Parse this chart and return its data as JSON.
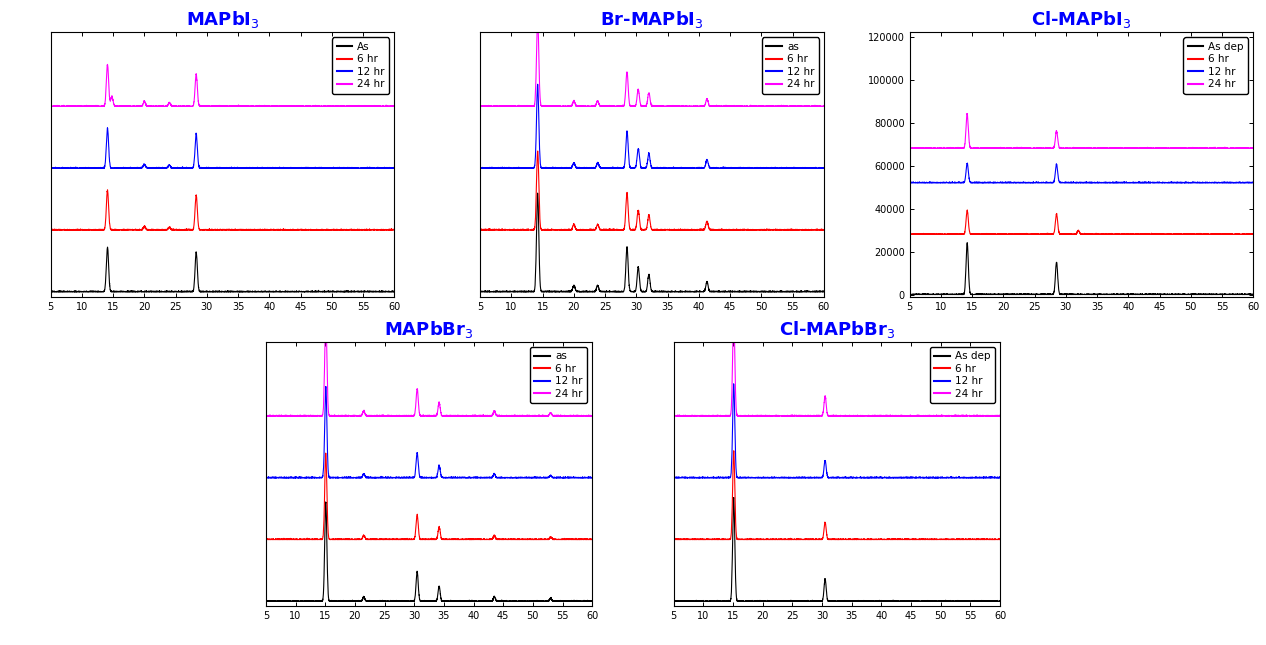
{
  "panels": [
    {
      "title": "MAPbI$_3$",
      "legend_labels": [
        "As",
        "6 hr",
        "12 hr",
        "24 hr"
      ],
      "has_yaxis": false,
      "offsets": [
        0.0,
        0.25,
        0.5,
        0.75
      ],
      "ylim": [
        -0.02,
        1.05
      ],
      "peaks": [
        [
          [
            14.1,
            0.18
          ],
          [
            28.3,
            0.16
          ]
        ],
        [
          [
            14.1,
            0.16
          ],
          [
            28.3,
            0.14
          ],
          [
            20.0,
            0.015
          ],
          [
            24.0,
            0.012
          ]
        ],
        [
          [
            14.1,
            0.16
          ],
          [
            28.3,
            0.14
          ],
          [
            20.0,
            0.015
          ],
          [
            24.0,
            0.012
          ]
        ],
        [
          [
            14.1,
            0.17
          ],
          [
            28.3,
            0.13
          ],
          [
            14.8,
            0.04
          ],
          [
            20.0,
            0.02
          ],
          [
            24.0,
            0.015
          ]
        ]
      ],
      "sigma": 0.18
    },
    {
      "title": "Br-MAPbI$_3$",
      "legend_labels": [
        "as",
        "6 hr",
        "12 hr",
        "24 hr"
      ],
      "has_yaxis": false,
      "offsets": [
        0.0,
        0.25,
        0.5,
        0.75
      ],
      "ylim": [
        -0.02,
        1.05
      ],
      "peaks": [
        [
          [
            14.2,
            0.4
          ],
          [
            20.0,
            0.025
          ],
          [
            23.8,
            0.025
          ],
          [
            28.5,
            0.18
          ],
          [
            30.3,
            0.1
          ],
          [
            32.0,
            0.07
          ],
          [
            41.3,
            0.04
          ]
        ],
        [
          [
            14.2,
            0.32
          ],
          [
            20.0,
            0.022
          ],
          [
            23.8,
            0.022
          ],
          [
            28.5,
            0.15
          ],
          [
            30.3,
            0.08
          ],
          [
            32.0,
            0.06
          ],
          [
            41.3,
            0.035
          ]
        ],
        [
          [
            14.2,
            0.34
          ],
          [
            20.0,
            0.022
          ],
          [
            23.8,
            0.022
          ],
          [
            28.5,
            0.15
          ],
          [
            30.3,
            0.08
          ],
          [
            32.0,
            0.06
          ],
          [
            41.3,
            0.035
          ]
        ],
        [
          [
            14.2,
            0.36
          ],
          [
            20.0,
            0.022
          ],
          [
            23.8,
            0.022
          ],
          [
            28.5,
            0.14
          ],
          [
            30.3,
            0.07
          ],
          [
            32.0,
            0.055
          ],
          [
            41.3,
            0.03
          ]
        ]
      ],
      "sigma": 0.18
    },
    {
      "title": "Cl-MAPbI$_3$",
      "legend_labels": [
        "As dep",
        "6 hr",
        "12 hr",
        "24 hr"
      ],
      "has_yaxis": true,
      "offsets": [
        0,
        28000,
        52000,
        68000
      ],
      "ylim": [
        -1000,
        122000
      ],
      "yticks": [
        0,
        20000,
        40000,
        60000,
        80000,
        100000,
        120000
      ],
      "peaks": [
        [
          [
            14.2,
            24000
          ],
          [
            28.5,
            15000
          ]
        ],
        [
          [
            14.2,
            11000
          ],
          [
            28.5,
            9500
          ],
          [
            32.0,
            1800
          ]
        ],
        [
          [
            14.2,
            9000
          ],
          [
            28.5,
            8500
          ]
        ],
        [
          [
            14.2,
            16000
          ],
          [
            28.5,
            8000
          ]
        ]
      ],
      "sigma": 0.18
    },
    {
      "title": "MAPbBr$_3$",
      "legend_labels": [
        "as",
        "6 hr",
        "12 hr",
        "24 hr"
      ],
      "has_yaxis": false,
      "offsets": [
        0.0,
        0.25,
        0.5,
        0.75
      ],
      "ylim": [
        -0.02,
        1.05
      ],
      "peaks": [
        [
          [
            15.1,
            0.4
          ],
          [
            21.5,
            0.018
          ],
          [
            30.5,
            0.12
          ],
          [
            34.2,
            0.06
          ],
          [
            43.5,
            0.018
          ],
          [
            53.0,
            0.012
          ]
        ],
        [
          [
            15.1,
            0.35
          ],
          [
            21.5,
            0.016
          ],
          [
            30.5,
            0.1
          ],
          [
            34.2,
            0.05
          ],
          [
            43.5,
            0.016
          ],
          [
            53.0,
            0.01
          ]
        ],
        [
          [
            15.1,
            0.37
          ],
          [
            21.5,
            0.016
          ],
          [
            30.5,
            0.1
          ],
          [
            34.2,
            0.05
          ],
          [
            43.5,
            0.016
          ],
          [
            53.0,
            0.01
          ]
        ],
        [
          [
            15.1,
            0.4
          ],
          [
            21.5,
            0.02
          ],
          [
            30.5,
            0.11
          ],
          [
            34.2,
            0.055
          ],
          [
            43.5,
            0.02
          ],
          [
            53.0,
            0.012
          ]
        ]
      ],
      "sigma": 0.18
    },
    {
      "title": "Cl-MAPbBr$_3$",
      "legend_labels": [
        "As dep",
        "6 hr",
        "12 hr",
        "24 hr"
      ],
      "has_yaxis": false,
      "offsets": [
        0.0,
        0.25,
        0.5,
        0.75
      ],
      "ylim": [
        -0.02,
        1.05
      ],
      "peaks": [
        [
          [
            15.1,
            0.42
          ],
          [
            30.5,
            0.09
          ]
        ],
        [
          [
            15.1,
            0.36
          ],
          [
            30.5,
            0.07
          ]
        ],
        [
          [
            15.1,
            0.38
          ],
          [
            30.5,
            0.07
          ]
        ],
        [
          [
            15.1,
            0.42
          ],
          [
            30.5,
            0.08
          ]
        ]
      ],
      "sigma": 0.18
    }
  ],
  "colors": [
    "black",
    "red",
    "blue",
    "magenta"
  ],
  "xmin": 5,
  "xmax": 60,
  "xticks": [
    5,
    10,
    15,
    20,
    25,
    30,
    35,
    40,
    45,
    50,
    55,
    60
  ],
  "title_color": "blue",
  "noise_level": 0.0015,
  "background": "white"
}
